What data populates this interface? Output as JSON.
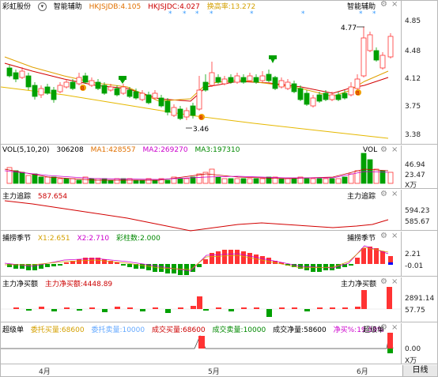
{
  "main": {
    "stock_name": "彩虹股份",
    "indicator": "智能辅助",
    "hkjsjdb": "HKJSJDB:4.105",
    "hkjsjdc": "HKJSJDC:4.027",
    "turnover": "换高率:13.272",
    "right_label": "智能辅助",
    "ticks": [
      "4.85",
      "4.48",
      "4.12",
      "3.75",
      "3.38"
    ],
    "high_annot": "4.77",
    "low_annot": "3.46",
    "marker_b": "B",
    "marker_s": "S"
  },
  "vol": {
    "title": "VOL(5,10,20)",
    "value": "306208",
    "ma1": "MA1:428557",
    "ma2": "MA2:269270",
    "ma3": "MA3:197310",
    "right_label": "VOL",
    "ticks": [
      "46.94",
      "23.47"
    ],
    "unit": "X万"
  },
  "zlzz": {
    "title": "主力追踪",
    "value": "587.654",
    "right_label": "主力追踪",
    "ticks": [
      "594.23",
      "585.67"
    ]
  },
  "bzjj": {
    "title": "捕捞季节",
    "x1": "X1:2.651",
    "x2": "X2:2.710",
    "caizhu": "彩柱数:2.000",
    "right_label": "捕捞季节",
    "ticks": [
      "2.21",
      "-0.01"
    ]
  },
  "zljmm": {
    "title": "主力净买额",
    "value": "主力净买额:4448.89",
    "right_label": "主力净买额",
    "ticks": [
      "2891.14",
      "57.75"
    ]
  },
  "cjd": {
    "title": "超级单",
    "wt_buy": "委托买量:68600",
    "wt_sell": "委托卖量:10000",
    "cj_buy": "成交买量:68600",
    "cj_sell": "成交卖量:10000",
    "cj_net": "成交净量:58600",
    "net_ratio": "净买%:19.59%",
    "right_label": "超级单",
    "ticks": [
      "0.00"
    ],
    "unit": "X万"
  },
  "dates": {
    "labels": [
      "4月",
      "5月",
      "6月"
    ],
    "period": "日线"
  },
  "colors": {
    "up": "#ff3333",
    "down": "#00a000",
    "ma5": "#cc0000",
    "ma_long": "#ffcc00",
    "purple": "#cc00cc",
    "blue": "#0000ff"
  }
}
